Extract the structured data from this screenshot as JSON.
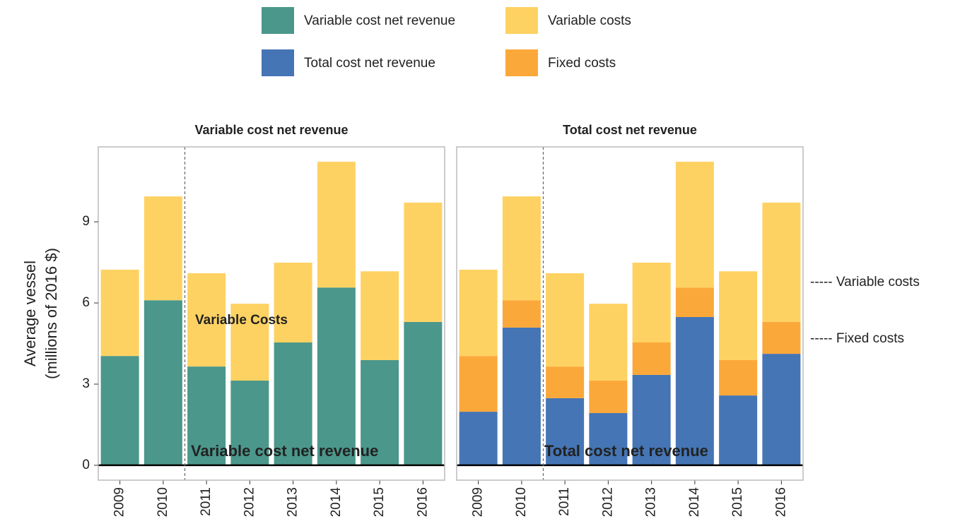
{
  "chart_data": [
    {
      "type": "bar",
      "stacked": true,
      "title": "Variable cost net revenue",
      "categories": [
        "2009",
        "2010",
        "2011",
        "2012",
        "2013",
        "2014",
        "2015",
        "2016"
      ],
      "series": [
        {
          "name": "Variable cost net revenue",
          "color": "#4b978b",
          "values": [
            4.04,
            6.1,
            3.65,
            3.13,
            4.54,
            6.57,
            3.89,
            5.3
          ]
        },
        {
          "name": "Variable costs",
          "color": "#fed262",
          "values": [
            3.19,
            3.84,
            3.45,
            2.84,
            2.95,
            4.65,
            3.28,
            4.41
          ]
        }
      ],
      "ylim": [
        -0.55,
        11.77
      ],
      "yticks": [
        0,
        3,
        6,
        9
      ],
      "y_label": [
        "Average vessel",
        "(millions of 2016 $)"
      ],
      "annotations": [
        "Variable Costs",
        "Variable cost net revenue"
      ]
    },
    {
      "type": "bar",
      "stacked": true,
      "title": "Total cost net revenue",
      "categories": [
        "2009",
        "2010",
        "2011",
        "2012",
        "2013",
        "2014",
        "2015",
        "2016"
      ],
      "series": [
        {
          "name": "Total cost net revenue",
          "color": "#4575b5",
          "values": [
            1.98,
            5.09,
            2.48,
            1.93,
            3.34,
            5.48,
            2.58,
            4.12
          ]
        },
        {
          "name": "Fixed costs",
          "color": "#fba83a",
          "values": [
            2.06,
            1.01,
            1.17,
            1.2,
            1.2,
            1.09,
            1.31,
            1.18
          ]
        },
        {
          "color": "#fed262",
          "values": [
            3.19,
            3.84,
            3.45,
            2.84,
            2.95,
            4.65,
            3.28,
            4.41
          ]
        }
      ],
      "ylim": [
        -0.55,
        11.77
      ],
      "yticks": [
        0,
        3,
        6,
        9
      ],
      "annotations": [
        "Total cost net revenue"
      ]
    }
  ],
  "side_notes": [
    "----- Variable costs",
    "----- Fixed costs"
  ]
}
